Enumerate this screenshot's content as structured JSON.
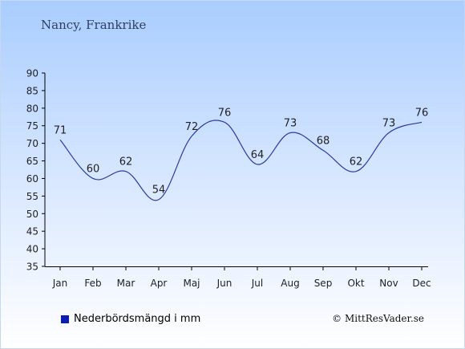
{
  "chart_data": {
    "type": "line",
    "title": "Nancy, Frankrike",
    "categories": [
      "Jan",
      "Feb",
      "Mar",
      "Apr",
      "Maj",
      "Jun",
      "Jul",
      "Aug",
      "Sep",
      "Okt",
      "Nov",
      "Dec"
    ],
    "series": [
      {
        "name": "Nederbördsmängd i mm",
        "values": [
          71,
          60,
          62,
          54,
          72,
          76,
          64,
          73,
          68,
          62,
          73,
          76
        ],
        "color": "#2a3c9e"
      }
    ],
    "yticks": [
      35,
      40,
      45,
      50,
      55,
      60,
      65,
      70,
      75,
      80,
      85,
      90
    ],
    "ylim": [
      35,
      90
    ],
    "xlabel": "",
    "ylabel": "",
    "grid": false,
    "legend": "bottom-left"
  },
  "legend": {
    "label": "Nederbördsmängd i mm",
    "color": "#0a1eb4"
  },
  "footer": {
    "copyright": "© MittResVader.se"
  }
}
